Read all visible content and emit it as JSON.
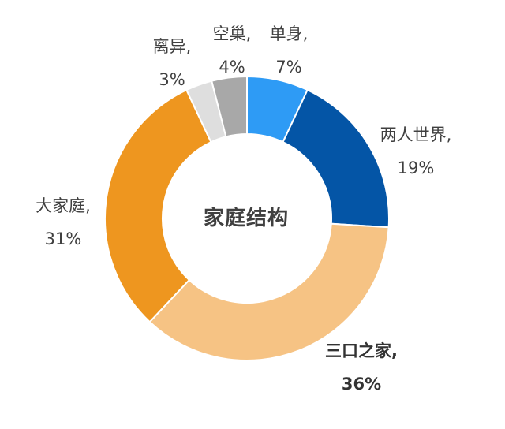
{
  "chart_data": {
    "type": "pie",
    "donut": true,
    "title": "",
    "center_label": "家庭结构",
    "categories": [
      "单身",
      "两人世界",
      "三口之家",
      "大家庭",
      "离异",
      "空巢"
    ],
    "series": [
      {
        "values": [
          7,
          19,
          36,
          31,
          3,
          4
        ]
      }
    ],
    "labels": [
      {
        "name": "单身,",
        "pct": "7%"
      },
      {
        "name": "两人世界,",
        "pct": "19%"
      },
      {
        "name": "三口之家,",
        "pct": "36%"
      },
      {
        "name": "大家庭,",
        "pct": "31%"
      },
      {
        "name": "离异,",
        "pct": "3%"
      },
      {
        "name": "空巢,",
        "pct": "4%"
      }
    ],
    "colors": [
      "#2E9BF5",
      "#0455A6",
      "#F6C384",
      "#EE961F",
      "#DEDEDE",
      "#A8A8A8"
    ],
    "highlighted_slice": "三口之家",
    "legend": "none"
  }
}
